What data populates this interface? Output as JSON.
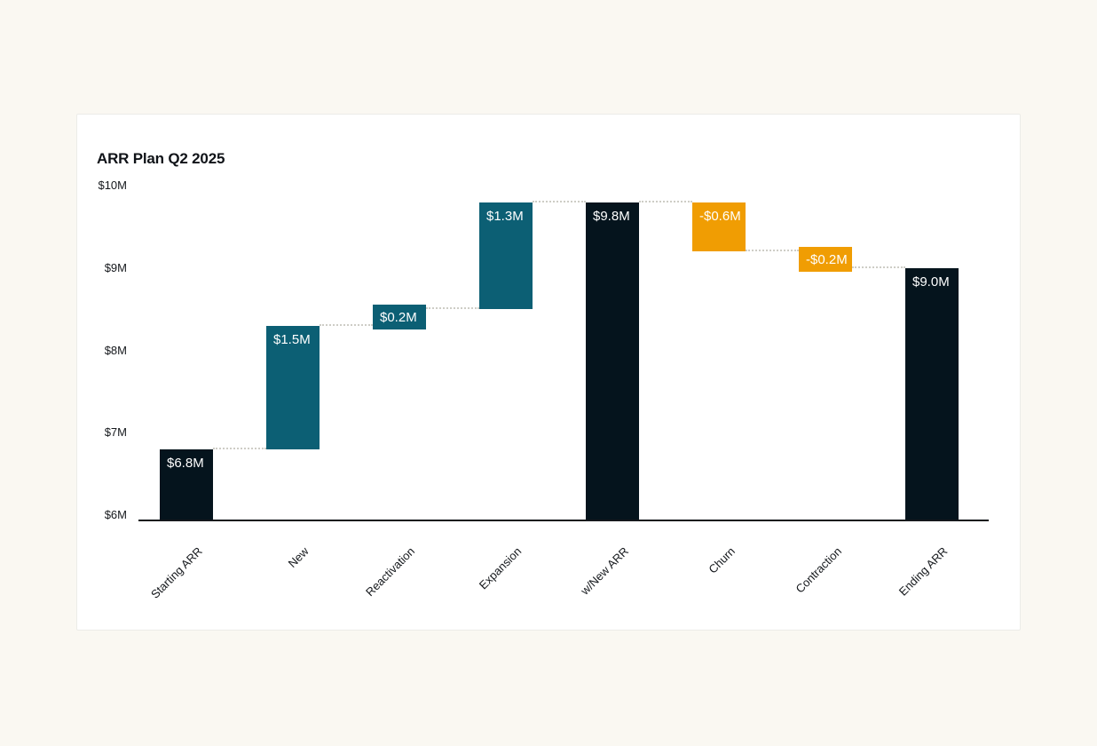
{
  "page": {
    "background_color": "#faf8f2",
    "card_background_color": "#ffffff",
    "card_border_color": "#ececE8"
  },
  "chart_data": {
    "type": "waterfall",
    "title": "ARR Plan Q2 2025",
    "unit": "$M",
    "categories": [
      "Starting ARR",
      "New",
      "Reactivation",
      "Expansion",
      "w/New ARR",
      "Churn",
      "Contraction",
      "Ending ARR"
    ],
    "bars": [
      {
        "category": "Starting ARR",
        "label": "$6.8M",
        "kind": "total",
        "value": 6.8,
        "from": 6.0,
        "to": 6.8
      },
      {
        "category": "New",
        "label": "$1.5M",
        "kind": "increase",
        "value": 1.5,
        "from": 6.8,
        "to": 8.3
      },
      {
        "category": "Reactivation",
        "label": "$0.2M",
        "kind": "increase",
        "value": 0.2,
        "from": 8.3,
        "to": 8.5
      },
      {
        "category": "Expansion",
        "label": "$1.3M",
        "kind": "increase",
        "value": 1.3,
        "from": 8.5,
        "to": 9.8
      },
      {
        "category": "w/New ARR",
        "label": "$9.8M",
        "kind": "total",
        "value": 9.8,
        "from": 6.0,
        "to": 9.8
      },
      {
        "category": "Churn",
        "label": "-$0.6M",
        "kind": "decrease",
        "value": -0.6,
        "from": 9.8,
        "to": 9.2
      },
      {
        "category": "Contraction",
        "label": "-$0.2M",
        "kind": "decrease",
        "value": -0.2,
        "from": 9.2,
        "to": 9.0
      },
      {
        "category": "Ending ARR",
        "label": "$9.0M",
        "kind": "total",
        "value": 9.0,
        "from": 6.0,
        "to": 9.0
      }
    ],
    "y_axis": {
      "min": 6,
      "max": 10,
      "ticks": [
        {
          "value": 6,
          "label": "$6M"
        },
        {
          "value": 7,
          "label": "$7M"
        },
        {
          "value": 8,
          "label": "$8M"
        },
        {
          "value": 9,
          "label": "$9M"
        },
        {
          "value": 10,
          "label": "$10M"
        }
      ]
    },
    "layout_hints": {
      "grid": "off",
      "legend": "none",
      "connector_style": "dotted",
      "value_labels": "inside-top, white"
    },
    "colors": {
      "total_bar": "#05141d",
      "increase_bar": "#0c5f74",
      "decrease_bar": "#f09d03",
      "connector": "#cecdc6",
      "axis": "#14171b",
      "tick_text": "#15181c",
      "bar_label_text": "#ffffff",
      "title_text": "#101318"
    }
  }
}
